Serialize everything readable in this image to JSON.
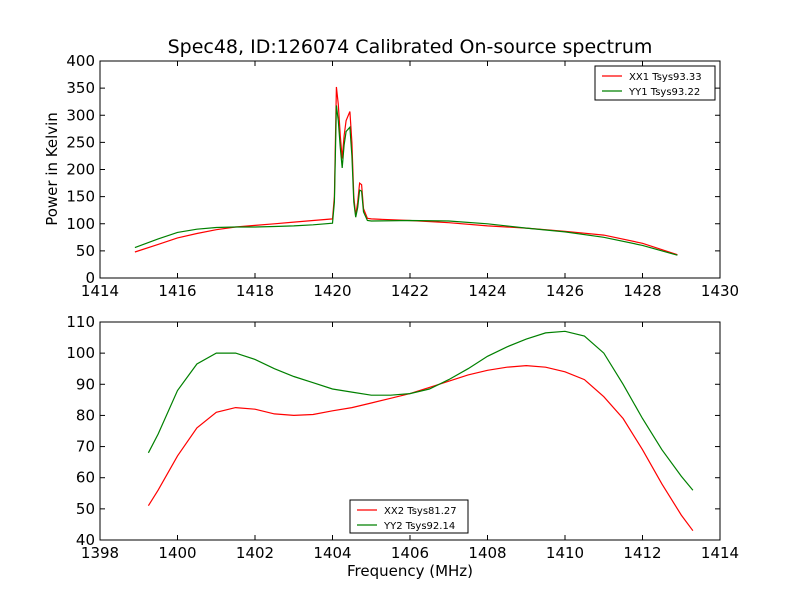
{
  "figure": {
    "title": "Spec48, ID:126074 Calibrated On-source spectrum",
    "xlabel": "Frequency (MHz)"
  },
  "chart_data": [
    {
      "type": "line",
      "title": "Spec48, ID:126074 Calibrated On-source spectrum",
      "xlabel": "",
      "ylabel": "Power in Kelvin",
      "xlim": [
        1414,
        1430
      ],
      "ylim": [
        0,
        400
      ],
      "xticks": [
        1414,
        1416,
        1418,
        1420,
        1422,
        1424,
        1426,
        1428,
        1430
      ],
      "yticks": [
        0,
        50,
        100,
        150,
        200,
        250,
        300,
        350,
        400
      ],
      "grid": false,
      "legend_position": "top-right",
      "series": [
        {
          "name": "XX1 Tsys93.33",
          "color": "#ff0000",
          "x": [
            1414.9,
            1415.5,
            1416,
            1416.5,
            1417,
            1417.5,
            1418,
            1418.5,
            1419,
            1419.5,
            1420,
            1420.05,
            1420.1,
            1420.15,
            1420.2,
            1420.25,
            1420.3,
            1420.35,
            1420.45,
            1420.5,
            1420.55,
            1420.6,
            1420.65,
            1420.7,
            1420.75,
            1420.8,
            1420.9,
            1421,
            1422,
            1423,
            1424,
            1425,
            1426,
            1427,
            1428,
            1428.9
          ],
          "y": [
            48,
            62,
            74,
            82,
            89,
            94,
            97,
            100,
            103,
            106,
            109,
            150,
            352,
            320,
            262,
            220,
            262,
            290,
            307,
            250,
            150,
            115,
            140,
            175,
            172,
            128,
            110,
            109,
            106,
            102,
            96,
            92,
            86,
            79,
            64,
            43
          ]
        },
        {
          "name": "YY1 Tsys93.22",
          "color": "#008000",
          "x": [
            1414.9,
            1415.5,
            1416,
            1416.5,
            1417,
            1417.5,
            1418,
            1418.5,
            1419,
            1419.5,
            1420,
            1420.05,
            1420.1,
            1420.15,
            1420.2,
            1420.25,
            1420.3,
            1420.35,
            1420.45,
            1420.5,
            1420.55,
            1420.6,
            1420.65,
            1420.7,
            1420.75,
            1420.8,
            1420.9,
            1421,
            1422,
            1423,
            1424,
            1425,
            1426,
            1427,
            1428,
            1428.9
          ],
          "y": [
            56,
            72,
            84,
            90,
            93,
            94,
            94,
            95,
            96,
            98,
            101,
            140,
            318,
            290,
            240,
            203,
            245,
            270,
            278,
            225,
            140,
            112,
            130,
            162,
            160,
            122,
            106,
            105,
            106,
            105,
            100,
            92,
            85,
            75,
            60,
            42
          ]
        }
      ]
    },
    {
      "type": "line",
      "title": "",
      "xlabel": "Frequency (MHz)",
      "ylabel": "",
      "xlim": [
        1398,
        1414
      ],
      "ylim": [
        40,
        110
      ],
      "xticks": [
        1398,
        1400,
        1402,
        1404,
        1406,
        1408,
        1410,
        1412,
        1414
      ],
      "yticks": [
        40,
        50,
        60,
        70,
        80,
        90,
        100,
        110
      ],
      "grid": false,
      "legend_position": "bottom-center",
      "series": [
        {
          "name": "XX2 Tsys81.27",
          "color": "#ff0000",
          "x": [
            1399.25,
            1399.5,
            1400,
            1400.5,
            1401,
            1401.5,
            1402,
            1402.5,
            1403,
            1403.5,
            1404,
            1404.5,
            1405,
            1405.5,
            1406,
            1406.5,
            1407,
            1407.5,
            1408,
            1408.5,
            1409,
            1409.5,
            1410,
            1410.5,
            1411,
            1411.5,
            1412,
            1412.5,
            1413,
            1413.3
          ],
          "y": [
            51,
            56,
            67,
            76,
            81,
            82.5,
            82,
            80.5,
            80,
            80.3,
            81.5,
            82.5,
            84,
            85.5,
            87,
            89,
            91,
            93,
            94.5,
            95.5,
            96,
            95.5,
            94,
            91.5,
            86,
            79,
            69,
            58,
            48,
            43
          ]
        },
        {
          "name": "YY2 Tsys92.14",
          "color": "#008000",
          "x": [
            1399.25,
            1399.5,
            1400,
            1400.5,
            1401,
            1401.5,
            1402,
            1402.5,
            1403,
            1403.5,
            1404,
            1404.5,
            1405,
            1405.5,
            1406,
            1406.5,
            1407,
            1407.5,
            1408,
            1408.5,
            1409,
            1409.5,
            1410,
            1410.5,
            1411,
            1411.5,
            1412,
            1412.5,
            1413,
            1413.3
          ],
          "y": [
            68,
            74,
            88,
            96.5,
            100,
            100,
            98,
            95,
            92.5,
            90.5,
            88.5,
            87.5,
            86.5,
            86.5,
            87,
            88.5,
            91.5,
            95,
            99,
            102,
            104.5,
            106.5,
            107,
            105.5,
            100,
            90,
            79,
            69,
            60.5,
            56
          ]
        }
      ]
    }
  ]
}
